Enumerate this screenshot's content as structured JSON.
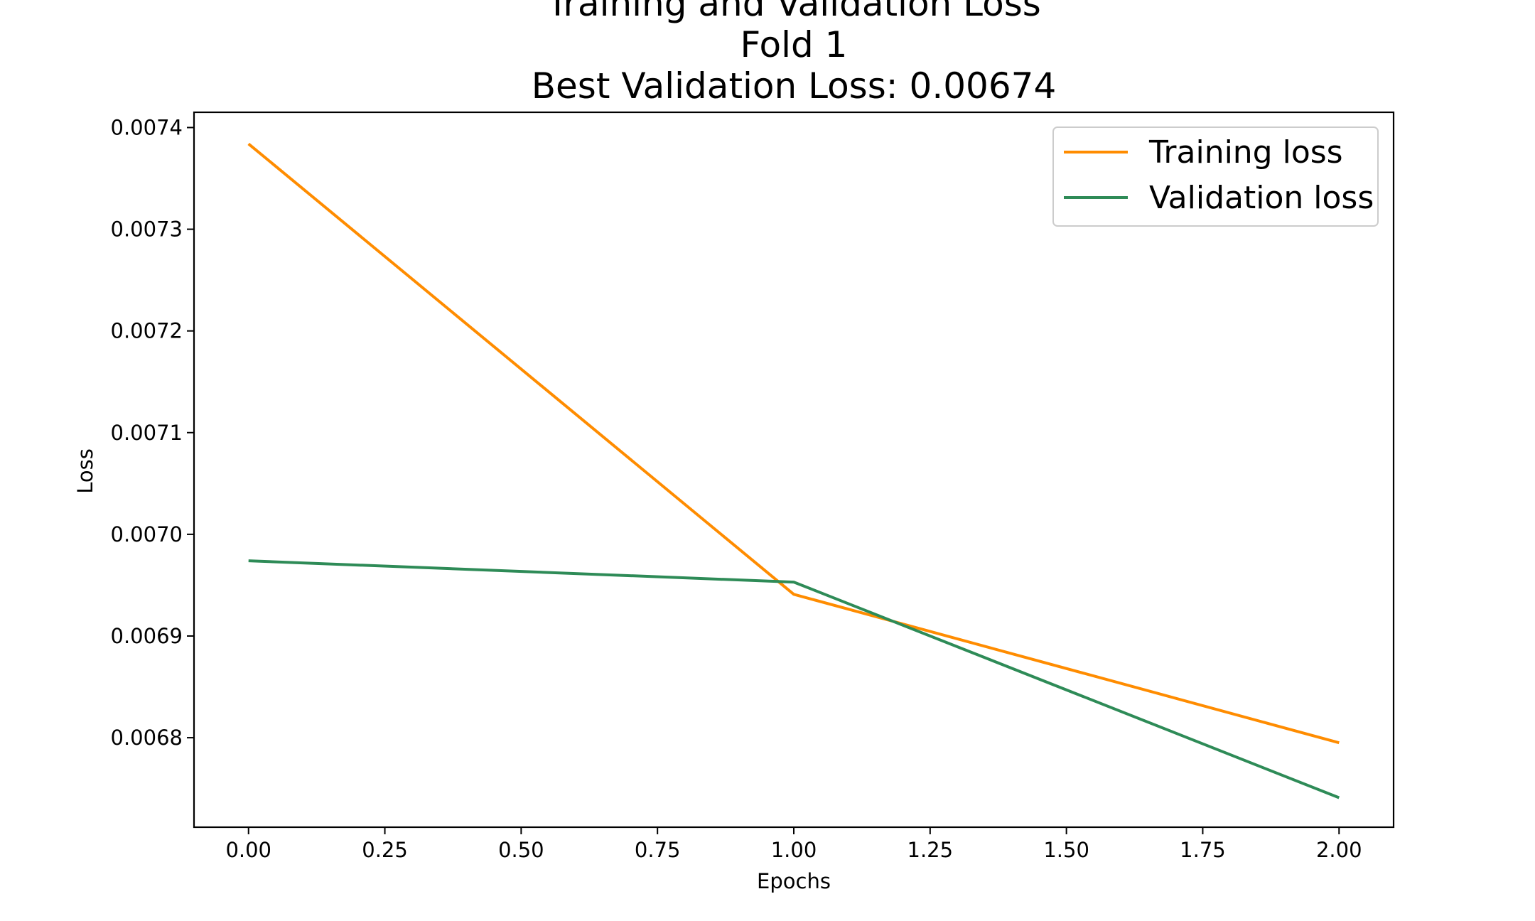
{
  "chart_data": {
    "type": "line",
    "title": [
      "Training and Validation Loss",
      "Fold 1",
      "Best Validation Loss: 0.00674"
    ],
    "xlabel": "Epochs",
    "ylabel": "Loss",
    "x": [
      0,
      1,
      2
    ],
    "series": [
      {
        "name": "Training loss",
        "color": "#ff8c00",
        "values": [
          0.007384,
          0.006941,
          0.006795
        ]
      },
      {
        "name": "Validation loss",
        "color": "#2e8b57",
        "values": [
          0.006974,
          0.006953,
          0.006741
        ]
      }
    ],
    "xlim": [
      -0.1,
      2.1
    ],
    "ylim": [
      0.006712,
      0.007415
    ],
    "xticks": [
      0.0,
      0.25,
      0.5,
      0.75,
      1.0,
      1.25,
      1.5,
      1.75,
      2.0
    ],
    "xtick_labels": [
      "0.00",
      "0.25",
      "0.50",
      "0.75",
      "1.00",
      "1.25",
      "1.50",
      "1.75",
      "2.00"
    ],
    "yticks": [
      0.0068,
      0.0069,
      0.007,
      0.0071,
      0.0072,
      0.0073,
      0.0074
    ],
    "ytick_labels": [
      "0.0068",
      "0.0069",
      "0.0070",
      "0.0071",
      "0.0072",
      "0.0073",
      "0.0074"
    ],
    "grid": false,
    "legend_position": "upper right"
  }
}
